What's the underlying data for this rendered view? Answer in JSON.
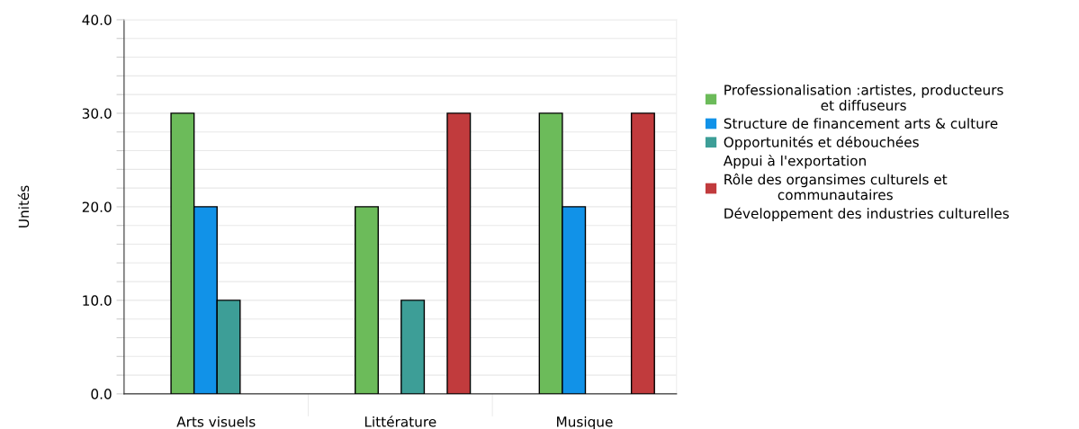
{
  "chart_data": {
    "type": "bar",
    "ylabel": "Unités",
    "categories": [
      "Arts visuels",
      "Littérature",
      "Musique"
    ],
    "series": [
      {
        "name": "Professionalisation :artistes, producteurs\net diffuseurs",
        "color": "#6cbb5a",
        "values": [
          30,
          20,
          30
        ]
      },
      {
        "name": "Structure de financement arts & culture",
        "color": "#1192e8",
        "values": [
          20,
          null,
          20
        ]
      },
      {
        "name": "Opportunités et débouchées",
        "color": "#3d9e97",
        "values": [
          10,
          10,
          null
        ]
      },
      {
        "name": "Appui à l'exportation",
        "values": [
          null,
          null,
          null
        ]
      },
      {
        "name": "Rôle des organsimes culturels et\ncommunautaires",
        "color": "#c13b3d",
        "values": [
          null,
          30,
          30
        ]
      },
      {
        "name": "Développement des industries culturelles",
        "values": [
          null,
          null,
          null
        ]
      }
    ],
    "ylim": [
      0,
      40
    ],
    "yticks": [
      {
        "value": 0,
        "label": "0.0"
      },
      {
        "value": 2,
        "label": null
      },
      {
        "value": 4,
        "label": null
      },
      {
        "value": 6,
        "label": null
      },
      {
        "value": 8,
        "label": null
      },
      {
        "value": 10,
        "label": "10.0"
      },
      {
        "value": 12,
        "label": null
      },
      {
        "value": 14,
        "label": null
      },
      {
        "value": 16,
        "label": null
      },
      {
        "value": 18,
        "label": null
      },
      {
        "value": 20,
        "label": "20.0"
      },
      {
        "value": 22,
        "label": null
      },
      {
        "value": 24,
        "label": null
      },
      {
        "value": 26,
        "label": null
      },
      {
        "value": 28,
        "label": null
      },
      {
        "value": 30,
        "label": "30.0"
      },
      {
        "value": 32,
        "label": null
      },
      {
        "value": 34,
        "label": null
      },
      {
        "value": 36,
        "label": null
      },
      {
        "value": 38,
        "label": null
      },
      {
        "value": 40,
        "label": "40.0"
      }
    ],
    "grid": "y",
    "legend": "right"
  }
}
